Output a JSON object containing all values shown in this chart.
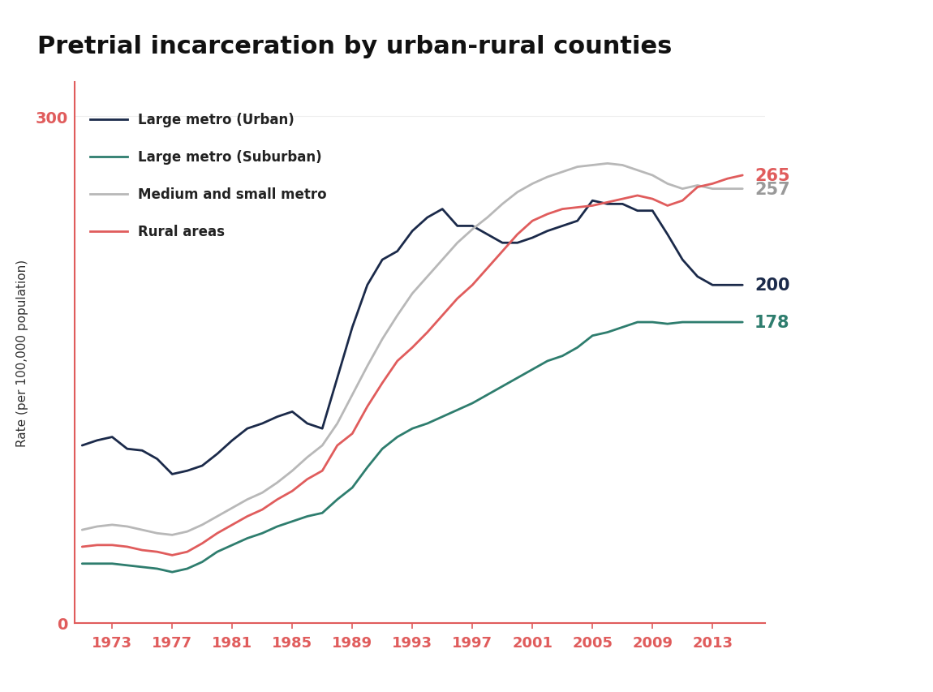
{
  "title": "Pretrial incarceration by urban-rural counties",
  "ylabel": "Rate (per 100,000 population)",
  "background_color": "#ffffff",
  "title_fontsize": 22,
  "title_fontweight": "bold",
  "ylabel_fontsize": 11,
  "ylim": [
    0,
    320
  ],
  "yticks": [
    0,
    300
  ],
  "xlim": [
    1970.5,
    2016.5
  ],
  "xtick_pos": [
    1973,
    1977,
    1981,
    1985,
    1989,
    1993,
    1997,
    2001,
    2005,
    2009,
    2013
  ],
  "series_order": [
    "large_metro_urban",
    "large_metro_suburban",
    "medium_small_metro",
    "rural_areas"
  ],
  "series": {
    "large_metro_urban": {
      "label": "Large metro (Urban)",
      "color": "#1b2a4a",
      "linewidth": 2.0,
      "years": [
        1971,
        1972,
        1973,
        1974,
        1975,
        1976,
        1977,
        1978,
        1979,
        1980,
        1981,
        1982,
        1983,
        1984,
        1985,
        1986,
        1987,
        1988,
        1989,
        1990,
        1991,
        1992,
        1993,
        1994,
        1995,
        1996,
        1997,
        1998,
        1999,
        2000,
        2001,
        2002,
        2003,
        2004,
        2005,
        2006,
        2007,
        2008,
        2009,
        2010,
        2011,
        2012,
        2013,
        2014,
        2015
      ],
      "values": [
        105,
        108,
        110,
        103,
        102,
        97,
        88,
        90,
        93,
        100,
        108,
        115,
        118,
        122,
        125,
        118,
        115,
        145,
        175,
        200,
        215,
        220,
        232,
        240,
        245,
        235,
        235,
        230,
        225,
        225,
        228,
        232,
        235,
        238,
        250,
        248,
        248,
        244,
        244,
        230,
        215,
        205,
        200,
        200,
        200
      ]
    },
    "large_metro_suburban": {
      "label": "Large metro (Suburban)",
      "color": "#2e7d6e",
      "linewidth": 2.0,
      "years": [
        1971,
        1972,
        1973,
        1974,
        1975,
        1976,
        1977,
        1978,
        1979,
        1980,
        1981,
        1982,
        1983,
        1984,
        1985,
        1986,
        1987,
        1988,
        1989,
        1990,
        1991,
        1992,
        1993,
        1994,
        1995,
        1996,
        1997,
        1998,
        1999,
        2000,
        2001,
        2002,
        2003,
        2004,
        2005,
        2006,
        2007,
        2008,
        2009,
        2010,
        2011,
        2012,
        2013,
        2014,
        2015
      ],
      "values": [
        35,
        35,
        35,
        34,
        33,
        32,
        30,
        32,
        36,
        42,
        46,
        50,
        53,
        57,
        60,
        63,
        65,
        73,
        80,
        92,
        103,
        110,
        115,
        118,
        122,
        126,
        130,
        135,
        140,
        145,
        150,
        155,
        158,
        163,
        170,
        172,
        175,
        178,
        178,
        177,
        178,
        178,
        178,
        178,
        178
      ]
    },
    "medium_small_metro": {
      "label": "Medium and small metro",
      "color": "#b8b8b8",
      "linewidth": 2.0,
      "years": [
        1971,
        1972,
        1973,
        1974,
        1975,
        1976,
        1977,
        1978,
        1979,
        1980,
        1981,
        1982,
        1983,
        1984,
        1985,
        1986,
        1987,
        1988,
        1989,
        1990,
        1991,
        1992,
        1993,
        1994,
        1995,
        1996,
        1997,
        1998,
        1999,
        2000,
        2001,
        2002,
        2003,
        2004,
        2005,
        2006,
        2007,
        2008,
        2009,
        2010,
        2011,
        2012,
        2013,
        2014,
        2015
      ],
      "values": [
        55,
        57,
        58,
        57,
        55,
        53,
        52,
        54,
        58,
        63,
        68,
        73,
        77,
        83,
        90,
        98,
        105,
        118,
        135,
        152,
        168,
        182,
        195,
        205,
        215,
        225,
        233,
        240,
        248,
        255,
        260,
        264,
        267,
        270,
        271,
        272,
        271,
        268,
        265,
        260,
        257,
        259,
        257,
        257,
        257
      ]
    },
    "rural_areas": {
      "label": "Rural areas",
      "color": "#e05c5c",
      "linewidth": 2.0,
      "years": [
        1971,
        1972,
        1973,
        1974,
        1975,
        1976,
        1977,
        1978,
        1979,
        1980,
        1981,
        1982,
        1983,
        1984,
        1985,
        1986,
        1987,
        1988,
        1989,
        1990,
        1991,
        1992,
        1993,
        1994,
        1995,
        1996,
        1997,
        1998,
        1999,
        2000,
        2001,
        2002,
        2003,
        2004,
        2005,
        2006,
        2007,
        2008,
        2009,
        2010,
        2011,
        2012,
        2013,
        2014,
        2015
      ],
      "values": [
        45,
        46,
        46,
        45,
        43,
        42,
        40,
        42,
        47,
        53,
        58,
        63,
        67,
        73,
        78,
        85,
        90,
        105,
        112,
        128,
        142,
        155,
        163,
        172,
        182,
        192,
        200,
        210,
        220,
        230,
        238,
        242,
        245,
        246,
        247,
        249,
        251,
        253,
        251,
        247,
        250,
        258,
        260,
        263,
        265
      ]
    }
  },
  "end_labels": [
    {
      "key": "rural_areas",
      "value": 265,
      "color": "#e05c5c",
      "y": 265
    },
    {
      "key": "medium_small_metro",
      "value": 257,
      "color": "#999999",
      "y": 257
    },
    {
      "key": "large_metro_urban",
      "value": 200,
      "color": "#1b2a4a",
      "y": 200
    },
    {
      "key": "large_metro_suburban",
      "value": 178,
      "color": "#2e7d6e",
      "y": 178
    }
  ],
  "axis_color": "#e05c5c",
  "tick_color": "#e05c5c",
  "gridline_color": "#eeeeee"
}
